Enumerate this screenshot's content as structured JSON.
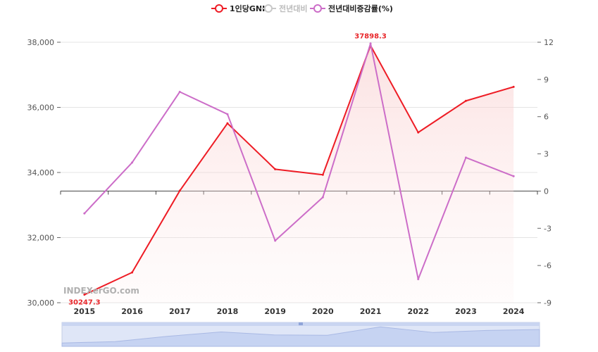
{
  "legend": {
    "items": [
      {
        "label": "1인당GNI",
        "color": "#ee1c25",
        "active": true
      },
      {
        "label": "전년대비",
        "color": "#c8c8c8",
        "active": false
      },
      {
        "label": "전년대비증감률(%)",
        "color": "#cc6dc8",
        "active": true
      }
    ]
  },
  "watermark": "INDEXerGO.com",
  "chart_data": {
    "type": "line",
    "x": [
      "2015",
      "2016",
      "2017",
      "2018",
      "2019",
      "2020",
      "2021",
      "2022",
      "2023",
      "2024"
    ],
    "series": [
      {
        "name": "1인당GNI",
        "axis": "left",
        "color": "#ee1c25",
        "area": true,
        "values": [
          30247.3,
          30930,
          33440,
          35510,
          34100,
          33930,
          37898.3,
          35230,
          36200,
          36630
        ]
      },
      {
        "name": "전년대비증감률(%)",
        "axis": "right",
        "color": "#cc6dc8",
        "area": false,
        "values": [
          -1.8,
          2.3,
          8.0,
          6.2,
          -4.0,
          -0.5,
          11.9,
          -7.1,
          2.7,
          1.2
        ]
      }
    ],
    "y_left": {
      "ticks": [
        "30,000",
        "32,000",
        "34,000",
        "36,000",
        "38,000"
      ],
      "tick_values": [
        30000,
        32000,
        34000,
        36000,
        38000
      ],
      "ylim": [
        30000,
        38000
      ]
    },
    "y_right": {
      "ticks": [
        "-9",
        "-6",
        "-3",
        "0",
        "3",
        "6",
        "9",
        "12"
      ],
      "tick_values": [
        -9,
        -6,
        -3,
        0,
        3,
        6,
        9,
        12
      ],
      "ylim": [
        -9,
        12
      ]
    },
    "data_labels": [
      {
        "series": 0,
        "index": 0,
        "text": "30247.3"
      },
      {
        "series": 0,
        "index": 6,
        "text": "37898.3"
      }
    ],
    "grid": true,
    "legend_position": "top-center",
    "zoom_slider": true
  }
}
